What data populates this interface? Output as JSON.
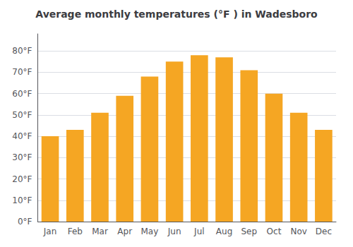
{
  "chart_data": {
    "type": "bar",
    "title": "Average monthly temperatures (°F ) in Wadesboro",
    "categories": [
      "Jan",
      "Feb",
      "Mar",
      "Apr",
      "May",
      "Jun",
      "Jul",
      "Aug",
      "Sep",
      "Oct",
      "Nov",
      "Dec"
    ],
    "values": [
      40,
      43,
      51,
      59,
      68,
      75,
      78,
      77,
      71,
      60,
      51,
      43
    ],
    "color": "#F5A623",
    "ylim": [
      0,
      88
    ],
    "yticks": [
      {
        "value": 0,
        "label": "0°F"
      },
      {
        "value": 10,
        "label": "10°F"
      },
      {
        "value": 20,
        "label": "20°F"
      },
      {
        "value": 30,
        "label": "30°F"
      },
      {
        "value": 40,
        "label": "40°F"
      },
      {
        "value": 50,
        "label": "50°F"
      },
      {
        "value": 60,
        "label": "60°F"
      },
      {
        "value": 70,
        "label": "70°F"
      },
      {
        "value": 80,
        "label": "80°F"
      }
    ],
    "grid": true
  }
}
